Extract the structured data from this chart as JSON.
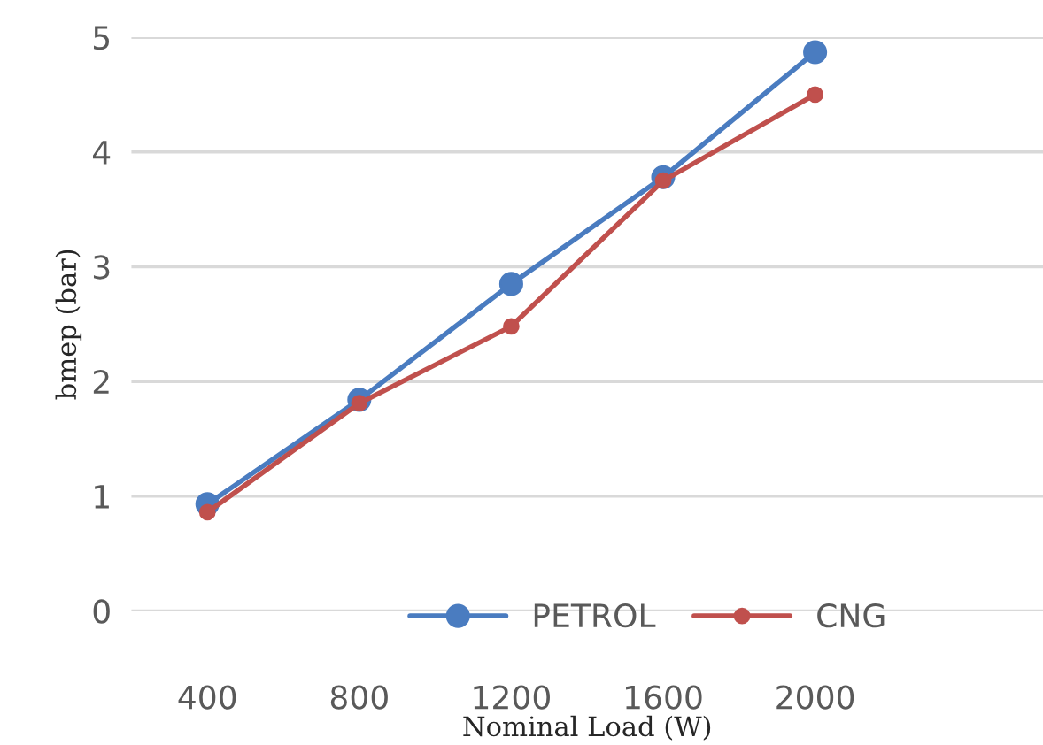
{
  "chart_data": {
    "type": "line",
    "xlabel": "Nominal Load (W)",
    "ylabel": "bmep (bar)",
    "categories": [
      "400",
      "800",
      "1200",
      "1600",
      "2000"
    ],
    "series": [
      {
        "name": "PETROL",
        "color": "#4a7cc0",
        "values": [
          0.93,
          1.84,
          2.85,
          3.78,
          4.87
        ]
      },
      {
        "name": "CNG",
        "color": "#c0504d",
        "values": [
          0.86,
          1.81,
          2.48,
          3.75,
          4.5
        ]
      }
    ],
    "ylim": [
      0,
      5
    ],
    "yticks": [
      0,
      1,
      2,
      3,
      4,
      5
    ],
    "grid": "y",
    "legend": "bottom right",
    "marker": "circle",
    "line_style": "solid"
  }
}
